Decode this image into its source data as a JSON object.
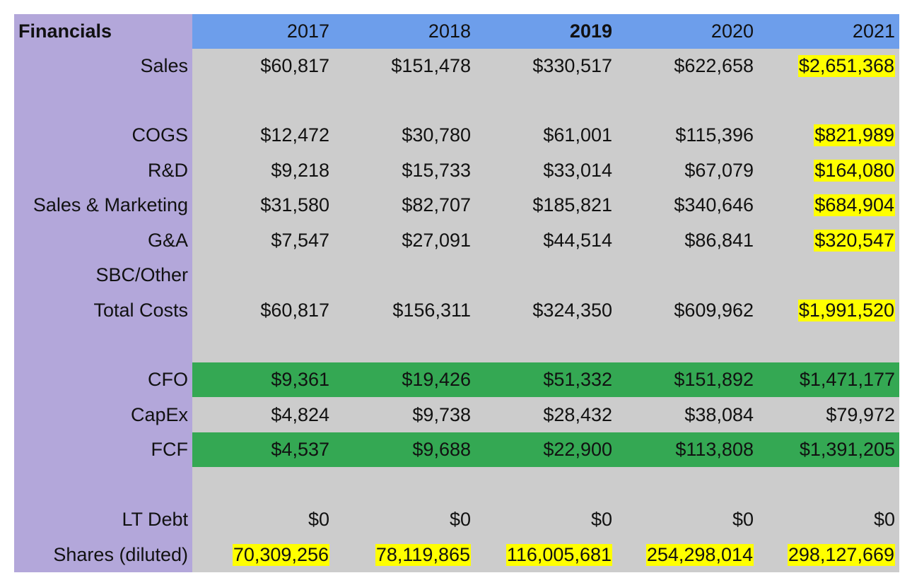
{
  "header": {
    "label": "Financials",
    "years": [
      "2017",
      "2018",
      "2019",
      "2020",
      "2021"
    ]
  },
  "rows": [
    {
      "label": "Sales",
      "values": [
        "$60,817",
        "$151,478",
        "$330,517",
        "$622,658",
        "$2,651,368"
      ]
    },
    {
      "label": "",
      "values": [
        "",
        "",
        "",
        "",
        ""
      ]
    },
    {
      "label": "COGS",
      "values": [
        "$12,472",
        "$30,780",
        "$61,001",
        "$115,396",
        "$821,989"
      ]
    },
    {
      "label": "R&D",
      "values": [
        "$9,218",
        "$15,733",
        "$33,014",
        "$67,079",
        "$164,080"
      ]
    },
    {
      "label": "Sales & Marketing",
      "values": [
        "$31,580",
        "$82,707",
        "$185,821",
        "$340,646",
        "$684,904"
      ]
    },
    {
      "label": "G&A",
      "values": [
        "$7,547",
        "$27,091",
        "$44,514",
        "$86,841",
        "$320,547"
      ]
    },
    {
      "label": "SBC/Other",
      "values": [
        "",
        "",
        "",
        "",
        ""
      ]
    },
    {
      "label": "Total Costs",
      "values": [
        "$60,817",
        "$156,311",
        "$324,350",
        "$609,962",
        "$1,991,520"
      ]
    },
    {
      "label": "",
      "values": [
        "",
        "",
        "",
        "",
        ""
      ]
    },
    {
      "label": "CFO",
      "values": [
        "$9,361",
        "$19,426",
        "$51,332",
        "$151,892",
        "$1,471,177"
      ]
    },
    {
      "label": "CapEx",
      "values": [
        "$4,824",
        "$9,738",
        "$28,432",
        "$38,084",
        "$79,972"
      ]
    },
    {
      "label": "FCF",
      "values": [
        "$4,537",
        "$9,688",
        "$22,900",
        "$113,808",
        "$1,391,205"
      ]
    },
    {
      "label": "",
      "values": [
        "",
        "",
        "",
        "",
        ""
      ]
    },
    {
      "label": "LT Debt",
      "values": [
        "$0",
        "$0",
        "$0",
        "$0",
        "$0"
      ]
    },
    {
      "label": "Shares (diluted)",
      "values": [
        "70,309,256",
        "78,119,865",
        "116,005,681",
        "254,298,014",
        "298,127,669"
      ]
    }
  ],
  "colors": {
    "label_column": "#b3a7da",
    "header_row": "#6d9eeb",
    "cell_background": "#cccccc",
    "cash_flow_rows": "#34a853",
    "highlight": "#ffff00"
  }
}
